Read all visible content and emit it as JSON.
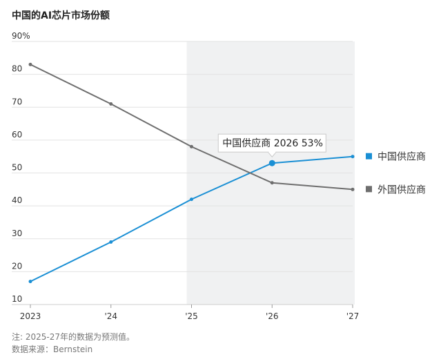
{
  "title": "中国的AI芯片市场份额",
  "notes": {
    "forecast": "注: 2025-27年的数据为预测值。",
    "source": "数据来源：Bernstein"
  },
  "chart_data": {
    "type": "line",
    "x": [
      "2023",
      "'24",
      "'25",
      "'26",
      "'27"
    ],
    "ylim": [
      10,
      90
    ],
    "yticks": [
      "90%",
      "80",
      "70",
      "60",
      "50",
      "40",
      "30",
      "20",
      "10"
    ],
    "forecast_start": "'25",
    "series": [
      {
        "name": "中国供应商",
        "values": [
          17,
          29,
          42,
          53,
          55
        ],
        "color": "#1a8fd4"
      },
      {
        "name": "外国供应商",
        "values": [
          83,
          71,
          58,
          47,
          45
        ],
        "color": "#6e6e6e"
      }
    ],
    "annotation": {
      "text": "中国供应商 2026 53%"
    },
    "grid": true,
    "legend": "right"
  }
}
